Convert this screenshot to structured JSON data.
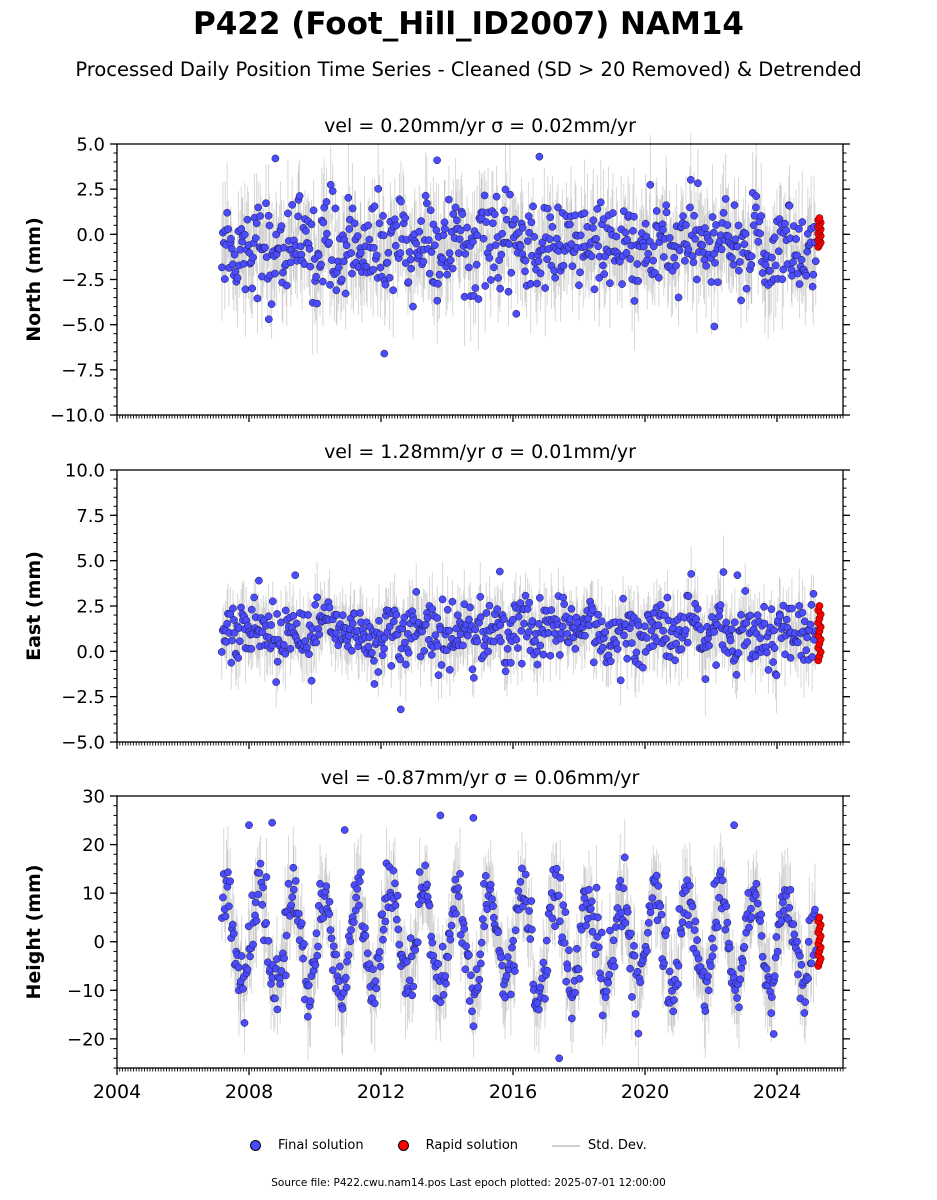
{
  "title": "P422 (Foot_Hill_ID2007) NAM14",
  "subtitle": "Processed Daily Position Time Series - Cleaned (SD > 20 Removed) & Detrended",
  "legend": {
    "final": "Final solution",
    "rapid": "Rapid solution",
    "std": "Std. Dev."
  },
  "source": "Source file: P422.cwu.nam14.pos  Last epoch plotted: 2025-07-01 12:00:00",
  "colors": {
    "final": "#4b4bff",
    "rapid": "#ff0000",
    "stddev": "#808080"
  },
  "chart_data": [
    {
      "type": "scatter",
      "title": "vel = 0.20mm/yr   σ = 0.02mm/yr",
      "ylabel": "North (mm)",
      "ylim": [
        -10,
        5
      ],
      "yticks": [
        5,
        2.5,
        0,
        -2.5,
        -5,
        -7.5,
        -10
      ],
      "ytick_labels": [
        "5.0",
        "2.5",
        "0.0",
        "−2.5",
        "−5.0",
        "−7.5",
        "−10.0"
      ],
      "x_range": [
        "2007-03",
        "2025-07"
      ],
      "y_center": -0.7,
      "y_spread": 1.3,
      "y_seasonal": 0.3,
      "outliers": [
        [
          2008.8,
          4.2
        ],
        [
          2013.7,
          4.1
        ],
        [
          2016.8,
          4.3
        ],
        [
          2012.1,
          -6.6
        ],
        [
          2008.6,
          -4.7
        ],
        [
          2022.1,
          -5.1
        ],
        [
          2016.1,
          -4.4
        ]
      ],
      "rapid_range": [
        -0.7,
        0.9
      ]
    },
    {
      "type": "scatter",
      "title": "vel = 1.28mm/yr   σ = 0.01mm/yr",
      "ylabel": "East (mm)",
      "ylim": [
        -5,
        10
      ],
      "yticks": [
        10,
        7.5,
        5,
        2.5,
        0,
        -2.5,
        -5
      ],
      "ytick_labels": [
        "10.0",
        "7.5",
        "5.0",
        "2.5",
        "0.0",
        "−2.5",
        "−5.0"
      ],
      "x_range": [
        "2007-03",
        "2025-07"
      ],
      "y_center": 1.1,
      "y_spread": 0.9,
      "y_seasonal": 0.3,
      "outliers": [
        [
          2008.3,
          3.9
        ],
        [
          2009.4,
          4.2
        ],
        [
          2015.6,
          4.4
        ],
        [
          2022.8,
          4.2
        ],
        [
          2012.6,
          -3.2
        ],
        [
          2011.8,
          -1.8
        ]
      ],
      "rapid_range": [
        -0.5,
        2.5
      ]
    },
    {
      "type": "scatter",
      "title": "vel = -0.87mm/yr   σ = 0.06mm/yr",
      "ylabel": "Height (mm)",
      "ylim": [
        -26,
        30
      ],
      "yticks": [
        30,
        20,
        10,
        0,
        -10,
        -20
      ],
      "ytick_labels": [
        "30",
        "20",
        "10",
        "0",
        "−10",
        "−20"
      ],
      "x_range": [
        "2007-03",
        "2025-07"
      ],
      "y_center": 0,
      "y_spread": 3.5,
      "y_seasonal": 10,
      "outliers": [
        [
          2008.0,
          24
        ],
        [
          2008.7,
          24.5
        ],
        [
          2010.9,
          23
        ],
        [
          2013.8,
          26
        ],
        [
          2014.8,
          25.5
        ],
        [
          2022.7,
          24
        ],
        [
          2017.4,
          -24
        ],
        [
          2023.9,
          -19
        ]
      ],
      "rapid_range": [
        -5,
        5
      ]
    }
  ],
  "xaxis": {
    "ticks": [
      2004,
      2008,
      2012,
      2016,
      2020,
      2024
    ],
    "tick_labels": [
      "2004",
      "2008",
      "2012",
      "2016",
      "2020",
      "2024"
    ],
    "xlim": [
      "2004-01",
      "2026-01"
    ]
  }
}
